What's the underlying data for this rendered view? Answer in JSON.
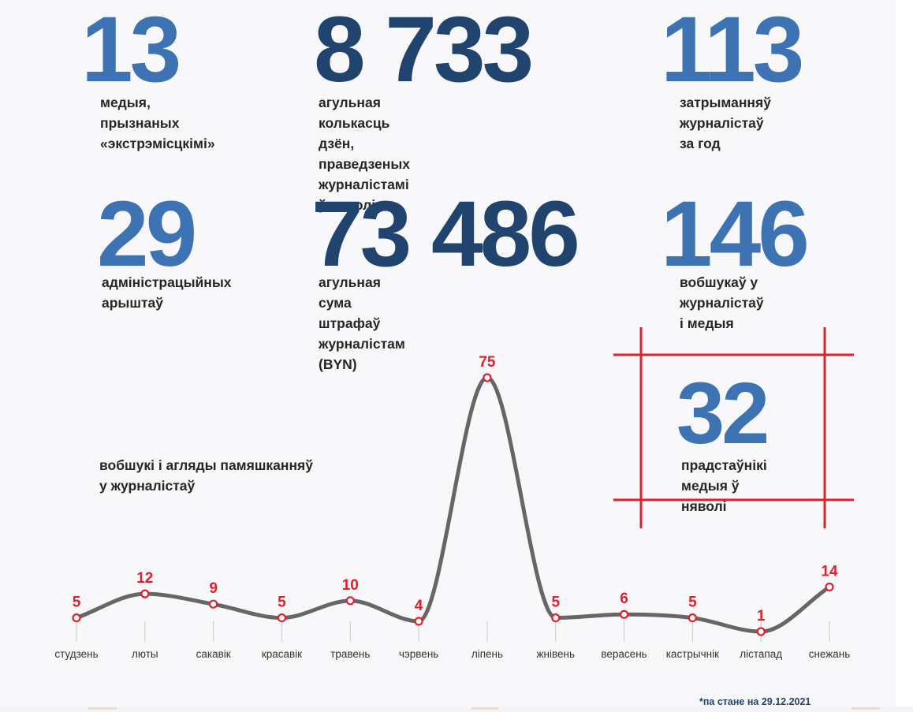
{
  "stats": {
    "media_extremist": {
      "value": "13",
      "label": "медыя, прызнаных\n«экстрэмісцкімі»"
    },
    "days_total": {
      "value": "8 733",
      "label": "агульная колькасць дзён, праведзеных\nжурналістамі ў няволі"
    },
    "detained": {
      "value": "113",
      "label": "затрыманняў журналістаў\nза год"
    },
    "admin_arrests": {
      "value": "29",
      "label": "адміністрацыйных\nарыштаў"
    },
    "fines_total": {
      "value": "73 486",
      "label": "агульная сума штрафаў\nжурналістам (BYN)"
    },
    "searches": {
      "value": "146",
      "label": "вобшукаў у журналістаў\nі медыя"
    },
    "imprisoned": {
      "value": "32",
      "label": "прадстаўнікі\nмедыя ў няволі"
    }
  },
  "chart_data": {
    "type": "line",
    "title": "вобшукі і агляды памяшканняў\nу журналістаў",
    "categories": [
      "студзень",
      "люты",
      "сакавік",
      "красавік",
      "травень",
      "чэрвень",
      "ліпень",
      "жнівень",
      "верасень",
      "кастрычнік",
      "лістапад",
      "снежань"
    ],
    "series": [
      {
        "values": [
          5,
          12,
          9,
          5,
          10,
          4,
          75,
          5,
          6,
          5,
          1,
          14
        ]
      }
    ],
    "xlabel": "",
    "ylabel": "",
    "ylim": [
      0,
      80
    ],
    "grid": false,
    "smooth": true,
    "line_color": "#666666",
    "marker_color": "#e0202b",
    "label_color": "#e0202b"
  },
  "footnote": "*па стане на 29.12.2021",
  "colors": {
    "number_light": "#3d73b3",
    "number_dark": "#21446f",
    "frame": "#e0202b",
    "text": "#262626",
    "background": "#f8f8fa"
  }
}
